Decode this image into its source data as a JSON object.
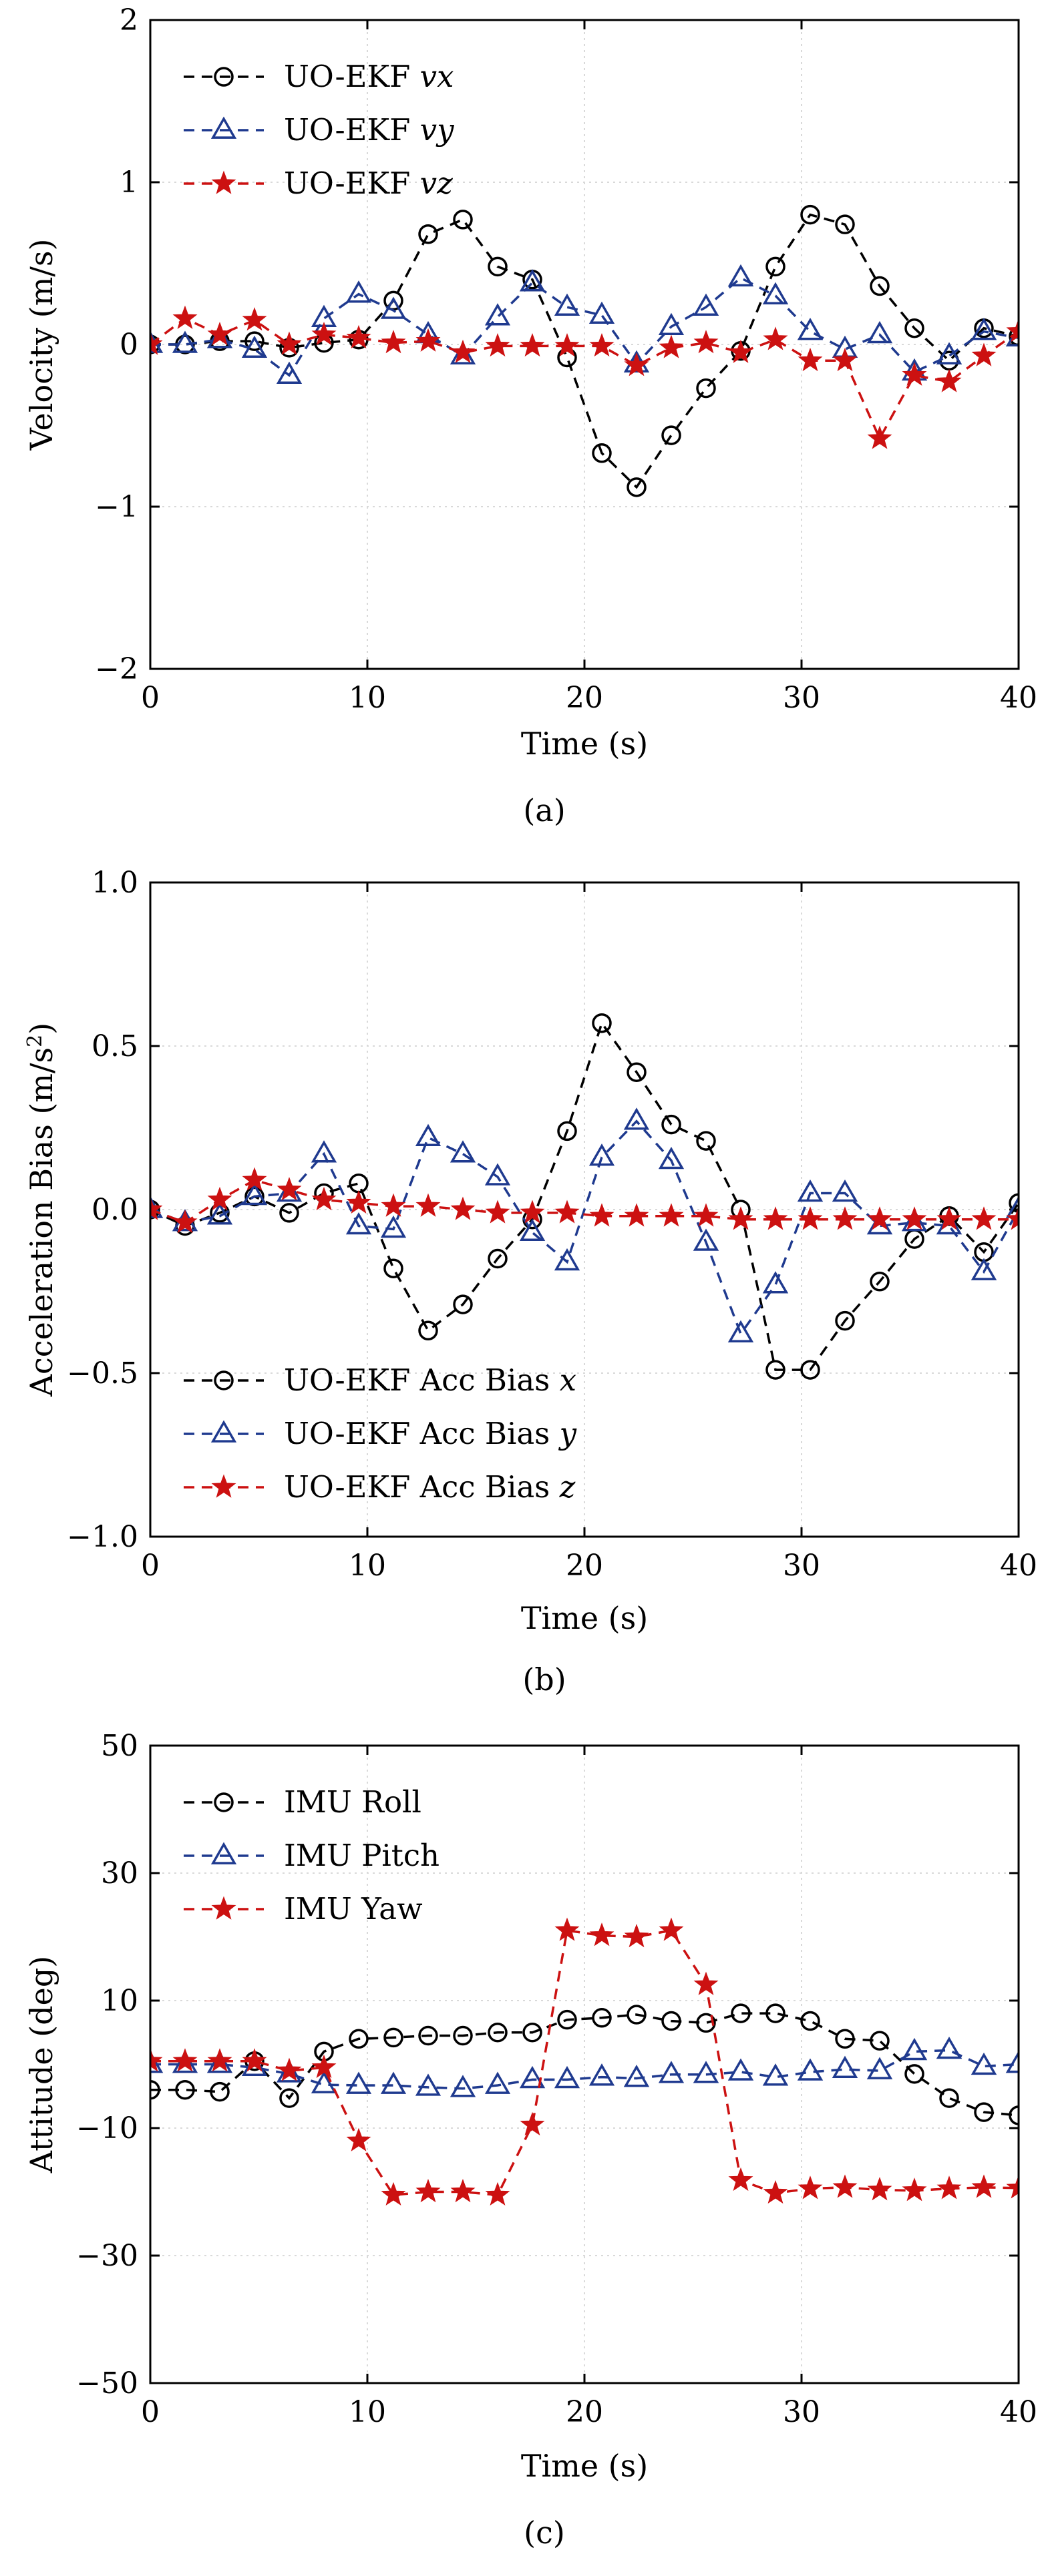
{
  "chart_data": [
    {
      "type": "line",
      "panel_label": "(a)",
      "xlabel": "Time (s)",
      "ylabel": "Velocity (m/s)",
      "xlim": [
        0,
        40
      ],
      "ylim": [
        -2,
        2
      ],
      "xticks": [
        0,
        10,
        20,
        30,
        40
      ],
      "xtick_labels": [
        "0",
        "10",
        "20",
        "30",
        "40"
      ],
      "yticks": [
        -2,
        -1,
        0,
        1,
        2
      ],
      "ytick_labels": [
        "−2",
        "−1",
        "0",
        "1",
        "2"
      ],
      "grid": true,
      "legend_position": "top-left",
      "series": [
        {
          "name": "UO-EKF vx",
          "name_plain": "UO-EKF ",
          "name_italic": "vx",
          "color": "#000000",
          "marker": "circle",
          "x": [
            0,
            1.6,
            3.2,
            4.8,
            6.4,
            8.0,
            9.6,
            11.2,
            12.8,
            14.4,
            16.0,
            17.6,
            19.2,
            20.8,
            22.4,
            24.0,
            25.6,
            27.2,
            28.8,
            30.4,
            32.0,
            33.6,
            35.2,
            36.8,
            38.4,
            40.0
          ],
          "y": [
            0,
            0,
            0.02,
            0.02,
            -0.02,
            0.01,
            0.03,
            0.27,
            0.68,
            0.77,
            0.48,
            0.4,
            -0.08,
            -0.67,
            -0.88,
            -0.56,
            -0.27,
            -0.04,
            0.48,
            0.8,
            0.74,
            0.36,
            0.1,
            -0.1,
            0.1,
            0.05
          ]
        },
        {
          "name": "UO-EKF vy",
          "name_plain": "UO-EKF ",
          "name_italic": "vy",
          "color": "#1f3a8f",
          "marker": "triangle",
          "x": [
            0,
            1.6,
            3.2,
            4.8,
            6.4,
            8.0,
            9.6,
            11.2,
            12.8,
            14.4,
            16.0,
            17.6,
            19.2,
            20.8,
            22.4,
            24.0,
            25.6,
            27.2,
            28.8,
            30.4,
            32.0,
            33.6,
            35.2,
            36.8,
            38.4,
            40.0
          ],
          "y": [
            0,
            0,
            0.03,
            -0.03,
            -0.19,
            0.16,
            0.31,
            0.21,
            0.06,
            -0.07,
            0.17,
            0.38,
            0.23,
            0.18,
            -0.12,
            0.11,
            0.23,
            0.41,
            0.3,
            0.08,
            -0.03,
            0.06,
            -0.17,
            -0.07,
            0.08,
            0.04
          ]
        },
        {
          "name": "UO-EKF vz",
          "name_plain": "UO-EKF ",
          "name_italic": "vz",
          "color": "#cc1111",
          "marker": "star",
          "x": [
            0,
            1.6,
            3.2,
            4.8,
            6.4,
            8.0,
            9.6,
            11.2,
            12.8,
            14.4,
            16.0,
            17.6,
            19.2,
            20.8,
            22.4,
            24.0,
            25.6,
            27.2,
            28.8,
            30.4,
            32.0,
            33.6,
            35.2,
            36.8,
            38.4,
            40.0
          ],
          "y": [
            0,
            0.16,
            0.06,
            0.15,
            0.0,
            0.06,
            0.04,
            0.01,
            0.02,
            -0.05,
            -0.01,
            -0.01,
            -0.01,
            -0.01,
            -0.13,
            -0.02,
            0.01,
            -0.05,
            0.03,
            -0.1,
            -0.1,
            -0.58,
            -0.19,
            -0.23,
            -0.07,
            0.08
          ]
        }
      ]
    },
    {
      "type": "line",
      "panel_label": "(b)",
      "xlabel": "Time (s)",
      "ylabel": "Acceleration Bias (m/s²)",
      "ylabel_main": "Acceleration Bias (m/s",
      "ylabel_sup": "2",
      "ylabel_end": ")",
      "xlim": [
        0,
        40
      ],
      "ylim": [
        -1.0,
        1.0
      ],
      "xticks": [
        0,
        10,
        20,
        30,
        40
      ],
      "xtick_labels": [
        "0",
        "10",
        "20",
        "30",
        "40"
      ],
      "yticks": [
        -1.0,
        -0.5,
        0.0,
        0.5,
        1.0
      ],
      "ytick_labels": [
        "−1.0",
        "−0.5",
        "0.0",
        "0.5",
        "1.0"
      ],
      "grid": true,
      "legend_position": "bottom-left",
      "series": [
        {
          "name": "UO-EKF Acc Bias x",
          "name_plain": "UO-EKF Acc Bias ",
          "name_italic": "x",
          "color": "#000000",
          "marker": "circle",
          "x": [
            0,
            1.6,
            3.2,
            4.8,
            6.4,
            8.0,
            9.6,
            11.2,
            12.8,
            14.4,
            16.0,
            17.6,
            19.2,
            20.8,
            22.4,
            24.0,
            25.6,
            27.2,
            28.8,
            30.4,
            32.0,
            33.6,
            35.2,
            36.8,
            38.4,
            40.0
          ],
          "y": [
            0,
            -0.05,
            -0.01,
            0.04,
            -0.01,
            0.05,
            0.08,
            -0.18,
            -0.37,
            -0.29,
            -0.15,
            -0.03,
            0.24,
            0.57,
            0.42,
            0.26,
            0.21,
            0.0,
            -0.49,
            -0.49,
            -0.34,
            -0.22,
            -0.09,
            -0.02,
            -0.13,
            0.02
          ]
        },
        {
          "name": "UO-EKF Acc Bias y",
          "name_plain": "UO-EKF Acc Bias ",
          "name_italic": "y",
          "color": "#1f3a8f",
          "marker": "triangle",
          "x": [
            0,
            1.6,
            3.2,
            4.8,
            6.4,
            8.0,
            9.6,
            11.2,
            12.8,
            14.4,
            16.0,
            17.6,
            19.2,
            20.8,
            22.4,
            24.0,
            25.6,
            27.2,
            28.8,
            30.4,
            32.0,
            33.6,
            35.2,
            36.8,
            38.4,
            40.0
          ],
          "y": [
            0,
            -0.04,
            -0.02,
            0.04,
            0.05,
            0.17,
            -0.05,
            -0.06,
            0.22,
            0.17,
            0.1,
            -0.07,
            -0.16,
            0.16,
            0.27,
            0.15,
            -0.1,
            -0.38,
            -0.23,
            0.05,
            0.05,
            -0.05,
            -0.04,
            -0.05,
            -0.19,
            0.0
          ]
        },
        {
          "name": "UO-EKF Acc Bias z",
          "name_plain": "UO-EKF Acc Bias ",
          "name_italic": "z",
          "color": "#cc1111",
          "marker": "star",
          "x": [
            0,
            1.6,
            3.2,
            4.8,
            6.4,
            8.0,
            9.6,
            11.2,
            12.8,
            14.4,
            16.0,
            17.6,
            19.2,
            20.8,
            22.4,
            24.0,
            25.6,
            27.2,
            28.8,
            30.4,
            32.0,
            33.6,
            35.2,
            36.8,
            38.4,
            40.0
          ],
          "y": [
            0,
            -0.04,
            0.03,
            0.09,
            0.06,
            0.03,
            0.02,
            0.01,
            0.01,
            0.0,
            -0.01,
            -0.01,
            -0.01,
            -0.02,
            -0.02,
            -0.02,
            -0.02,
            -0.03,
            -0.03,
            -0.03,
            -0.03,
            -0.03,
            -0.03,
            -0.03,
            -0.03,
            -0.03
          ]
        }
      ]
    },
    {
      "type": "line",
      "panel_label": "(c)",
      "xlabel": "Time (s)",
      "ylabel": "Attitude (deg)",
      "xlim": [
        0,
        40
      ],
      "ylim": [
        -50,
        50
      ],
      "xticks": [
        0,
        10,
        20,
        30,
        40
      ],
      "xtick_labels": [
        "0",
        "10",
        "20",
        "30",
        "40"
      ],
      "yticks": [
        -50,
        -30,
        -10,
        10,
        30,
        50
      ],
      "ytick_labels": [
        "−50",
        "−30",
        "−10",
        "10",
        "30",
        "50"
      ],
      "grid": true,
      "legend_position": "top-left",
      "series": [
        {
          "name": "IMU Roll",
          "name_plain": "IMU Roll",
          "name_italic": "",
          "color": "#000000",
          "marker": "circle",
          "x": [
            0,
            1.6,
            3.2,
            4.8,
            6.4,
            8.0,
            9.6,
            11.2,
            12.8,
            14.4,
            16.0,
            17.6,
            19.2,
            20.8,
            22.4,
            24.0,
            25.6,
            27.2,
            28.8,
            30.4,
            32.0,
            33.6,
            35.2,
            36.8,
            38.4,
            40.0
          ],
          "y": [
            -4,
            -4,
            -4.3,
            0.5,
            -5.3,
            2.0,
            4.0,
            4.2,
            4.5,
            4.5,
            5.0,
            5.0,
            7.0,
            7.3,
            7.8,
            6.8,
            6.5,
            8.0,
            8.0,
            6.8,
            4.0,
            3.7,
            -1.5,
            -5.3,
            -7.5,
            -8.0
          ]
        },
        {
          "name": "IMU Pitch",
          "name_plain": "IMU Pitch",
          "name_italic": "",
          "color": "#1f3a8f",
          "marker": "triangle",
          "x": [
            0,
            1.6,
            3.2,
            4.8,
            6.4,
            8.0,
            9.6,
            11.2,
            12.8,
            14.4,
            16.0,
            17.6,
            19.2,
            20.8,
            22.4,
            24.0,
            25.6,
            27.2,
            28.8,
            30.4,
            32.0,
            33.6,
            35.2,
            36.8,
            38.4,
            40.0
          ],
          "y": [
            0,
            0,
            0,
            -0.5,
            -1.5,
            -3.2,
            -3.3,
            -3.3,
            -3.6,
            -3.8,
            -3.3,
            -2.4,
            -2.4,
            -2.0,
            -2.2,
            -1.6,
            -1.6,
            -1.2,
            -2.0,
            -1.2,
            -0.8,
            -1.0,
            2.0,
            2.2,
            -0.3,
            0.0
          ]
        },
        {
          "name": "IMU Yaw",
          "name_plain": "IMU Yaw",
          "name_italic": "",
          "color": "#cc1111",
          "marker": "star",
          "x": [
            0,
            1.6,
            3.2,
            4.8,
            6.4,
            8.0,
            9.6,
            11.2,
            12.8,
            14.4,
            16.0,
            17.6,
            19.2,
            20.8,
            22.4,
            24.0,
            25.6,
            27.2,
            28.8,
            30.4,
            32.0,
            33.6,
            35.2,
            36.8,
            38.4,
            40.0
          ],
          "y": [
            0.5,
            0.5,
            0.5,
            0.5,
            -1.0,
            -0.5,
            -12,
            -20.5,
            -20,
            -20,
            -20.5,
            -9.5,
            21,
            20.2,
            20,
            21,
            12.5,
            -18.2,
            -20.2,
            -19.5,
            -19.3,
            -19.7,
            -19.8,
            -19.5,
            -19.3,
            -19.4
          ]
        }
      ]
    }
  ]
}
